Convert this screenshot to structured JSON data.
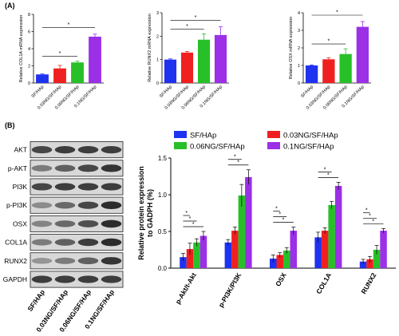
{
  "panels": {
    "a_label": "(A)",
    "b_label": "(B)"
  },
  "colors": [
    "#1f32f0",
    "#f02020",
    "#28c028",
    "#9b30e6"
  ],
  "chart_data": [
    {
      "type": "bar",
      "panel": "A",
      "ylabel": "Relative COL1A mRNA expression",
      "categories": [
        "SF/HAp",
        "0.03NG/SF/HAp",
        "0.06NG/SF/HAp",
        "0.1NG/SF/HAp"
      ],
      "values": [
        1.0,
        1.7,
        2.4,
        5.4
      ],
      "errors": [
        0.05,
        0.35,
        0.15,
        0.3
      ],
      "ylim": [
        0,
        8
      ],
      "yticks": [
        "0",
        "2",
        "4",
        "6",
        "8"
      ],
      "significance": [
        {
          "from": 0,
          "to": 2,
          "label": "*"
        },
        {
          "from": 0,
          "to": 3,
          "label": "*"
        }
      ]
    },
    {
      "type": "bar",
      "panel": "A",
      "ylabel": "Relative RUNX2 mRNA expression",
      "categories": [
        "SF/HAp",
        "0.03NG/SF/HAp",
        "0.06NG/SF/HAp",
        "0.1NG/SF/HAp"
      ],
      "values": [
        1.0,
        1.3,
        1.85,
        2.05
      ],
      "errors": [
        0.03,
        0.05,
        0.25,
        0.35
      ],
      "ylim": [
        0,
        3
      ],
      "yticks": [
        "0",
        "1",
        "2",
        "3"
      ],
      "significance": [
        {
          "from": 0,
          "to": 2,
          "label": "*"
        },
        {
          "from": 0,
          "to": 3,
          "label": "*"
        }
      ]
    },
    {
      "type": "bar",
      "panel": "A",
      "ylabel": "Relative OSX mRNA expression",
      "categories": [
        "SF/HAp",
        "0.03NG/SF/HAp",
        "0.06NG/SF/HAp",
        "0.1NG/SF/HAp"
      ],
      "values": [
        1.0,
        1.35,
        1.65,
        3.2
      ],
      "errors": [
        0.03,
        0.08,
        0.3,
        0.3
      ],
      "ylim": [
        0,
        4
      ],
      "yticks": [
        "0",
        "1",
        "2",
        "3",
        "4"
      ],
      "significance": [
        {
          "from": 0,
          "to": 2,
          "label": "*"
        },
        {
          "from": 0,
          "to": 3,
          "label": "*"
        }
      ]
    },
    {
      "type": "bar",
      "panel": "B",
      "ylabel_line1": "Relative protein expression",
      "ylabel_line2": "to GADPH (%)",
      "categories": [
        "p-Akt/t-Akt",
        "p-PI3K/PI3K",
        "OSX",
        "COL1A",
        "RUNX2"
      ],
      "ylim": [
        0,
        1.5
      ],
      "yticks": [
        "0.0",
        "0.5",
        "1.0",
        "1.5"
      ],
      "series": [
        {
          "name": "SF/HAp",
          "values": [
            0.15,
            0.35,
            0.13,
            0.42,
            0.09
          ],
          "errors": [
            0.05,
            0.04,
            0.05,
            0.07,
            0.03
          ]
        },
        {
          "name": "0.03NG/SF/HAp",
          "values": [
            0.26,
            0.51,
            0.18,
            0.51,
            0.12
          ],
          "errors": [
            0.08,
            0.05,
            0.03,
            0.04,
            0.04
          ]
        },
        {
          "name": "0.06NG/SF/HAp",
          "values": [
            0.35,
            0.99,
            0.24,
            0.86,
            0.25
          ],
          "errors": [
            0.05,
            0.15,
            0.04,
            0.05,
            0.06
          ]
        },
        {
          "name": "0.1NG/SF/HAp",
          "values": [
            0.44,
            1.24,
            0.51,
            1.12,
            0.51
          ],
          "errors": [
            0.06,
            0.1,
            0.05,
            0.05,
            0.03
          ]
        }
      ],
      "significance": [
        [
          {
            "from": 0,
            "to": 1
          },
          {
            "from": 0,
            "to": 2
          },
          {
            "from": 0,
            "to": 3
          }
        ],
        [
          {
            "from": 0,
            "to": 2
          },
          {
            "from": 0,
            "to": 3
          }
        ],
        [
          {
            "from": 0,
            "to": 1
          },
          {
            "from": 0,
            "to": 2
          },
          {
            "from": 0,
            "to": 3
          }
        ],
        [
          {
            "from": 0,
            "to": 2
          },
          {
            "from": 0,
            "to": 3
          }
        ],
        [
          {
            "from": 0,
            "to": 1
          },
          {
            "from": 0,
            "to": 2
          },
          {
            "from": 0,
            "to": 3
          }
        ]
      ],
      "sig_label": "*"
    }
  ],
  "blot": {
    "rows": [
      "AKT",
      "p-AKT",
      "PI3K",
      "p-PI3K",
      "OSX",
      "COL1A",
      "RUNX2",
      "GAPDH"
    ],
    "intensity": [
      [
        0.75,
        0.8,
        0.8,
        0.8
      ],
      [
        0.45,
        0.6,
        0.75,
        0.85
      ],
      [
        0.75,
        0.8,
        0.8,
        0.8
      ],
      [
        0.35,
        0.55,
        0.75,
        0.9
      ],
      [
        0.4,
        0.55,
        0.7,
        0.9
      ],
      [
        0.45,
        0.6,
        0.8,
        0.9
      ],
      [
        0.3,
        0.45,
        0.6,
        0.85
      ],
      [
        0.8,
        0.8,
        0.8,
        0.8
      ]
    ],
    "columns": [
      "SF/HAp",
      "0.03NG/SF/HAp",
      "0.06NG/SF/HAp",
      "0.1NG/SF/HAp"
    ]
  }
}
